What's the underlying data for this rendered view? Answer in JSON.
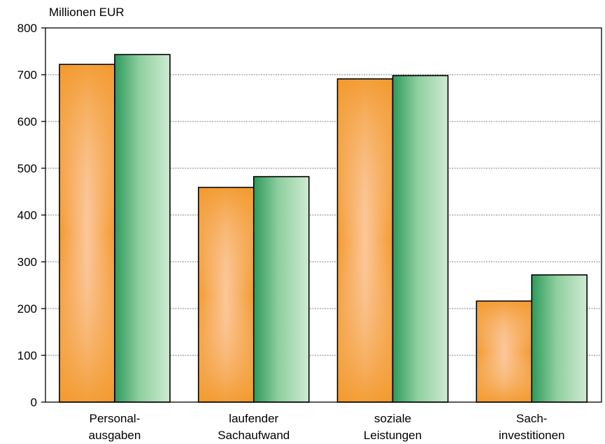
{
  "chart_data": {
    "type": "bar",
    "ylabel": "Millionen EUR",
    "ylim": [
      0,
      800
    ],
    "yticks": [
      0,
      100,
      200,
      300,
      400,
      500,
      600,
      700,
      800
    ],
    "grid": true,
    "categories": [
      [
        "Personal-",
        "ausgaben"
      ],
      [
        "laufender",
        "Sachaufwand"
      ],
      [
        "soziale",
        "Leistungen"
      ],
      [
        "Sach-",
        "investitionen"
      ]
    ],
    "series": [
      {
        "color": "#f39a2e",
        "values": [
          722,
          459,
          691,
          216
        ]
      },
      {
        "color": "#2e9a5c",
        "values": [
          743,
          482,
          698,
          272
        ]
      }
    ]
  }
}
